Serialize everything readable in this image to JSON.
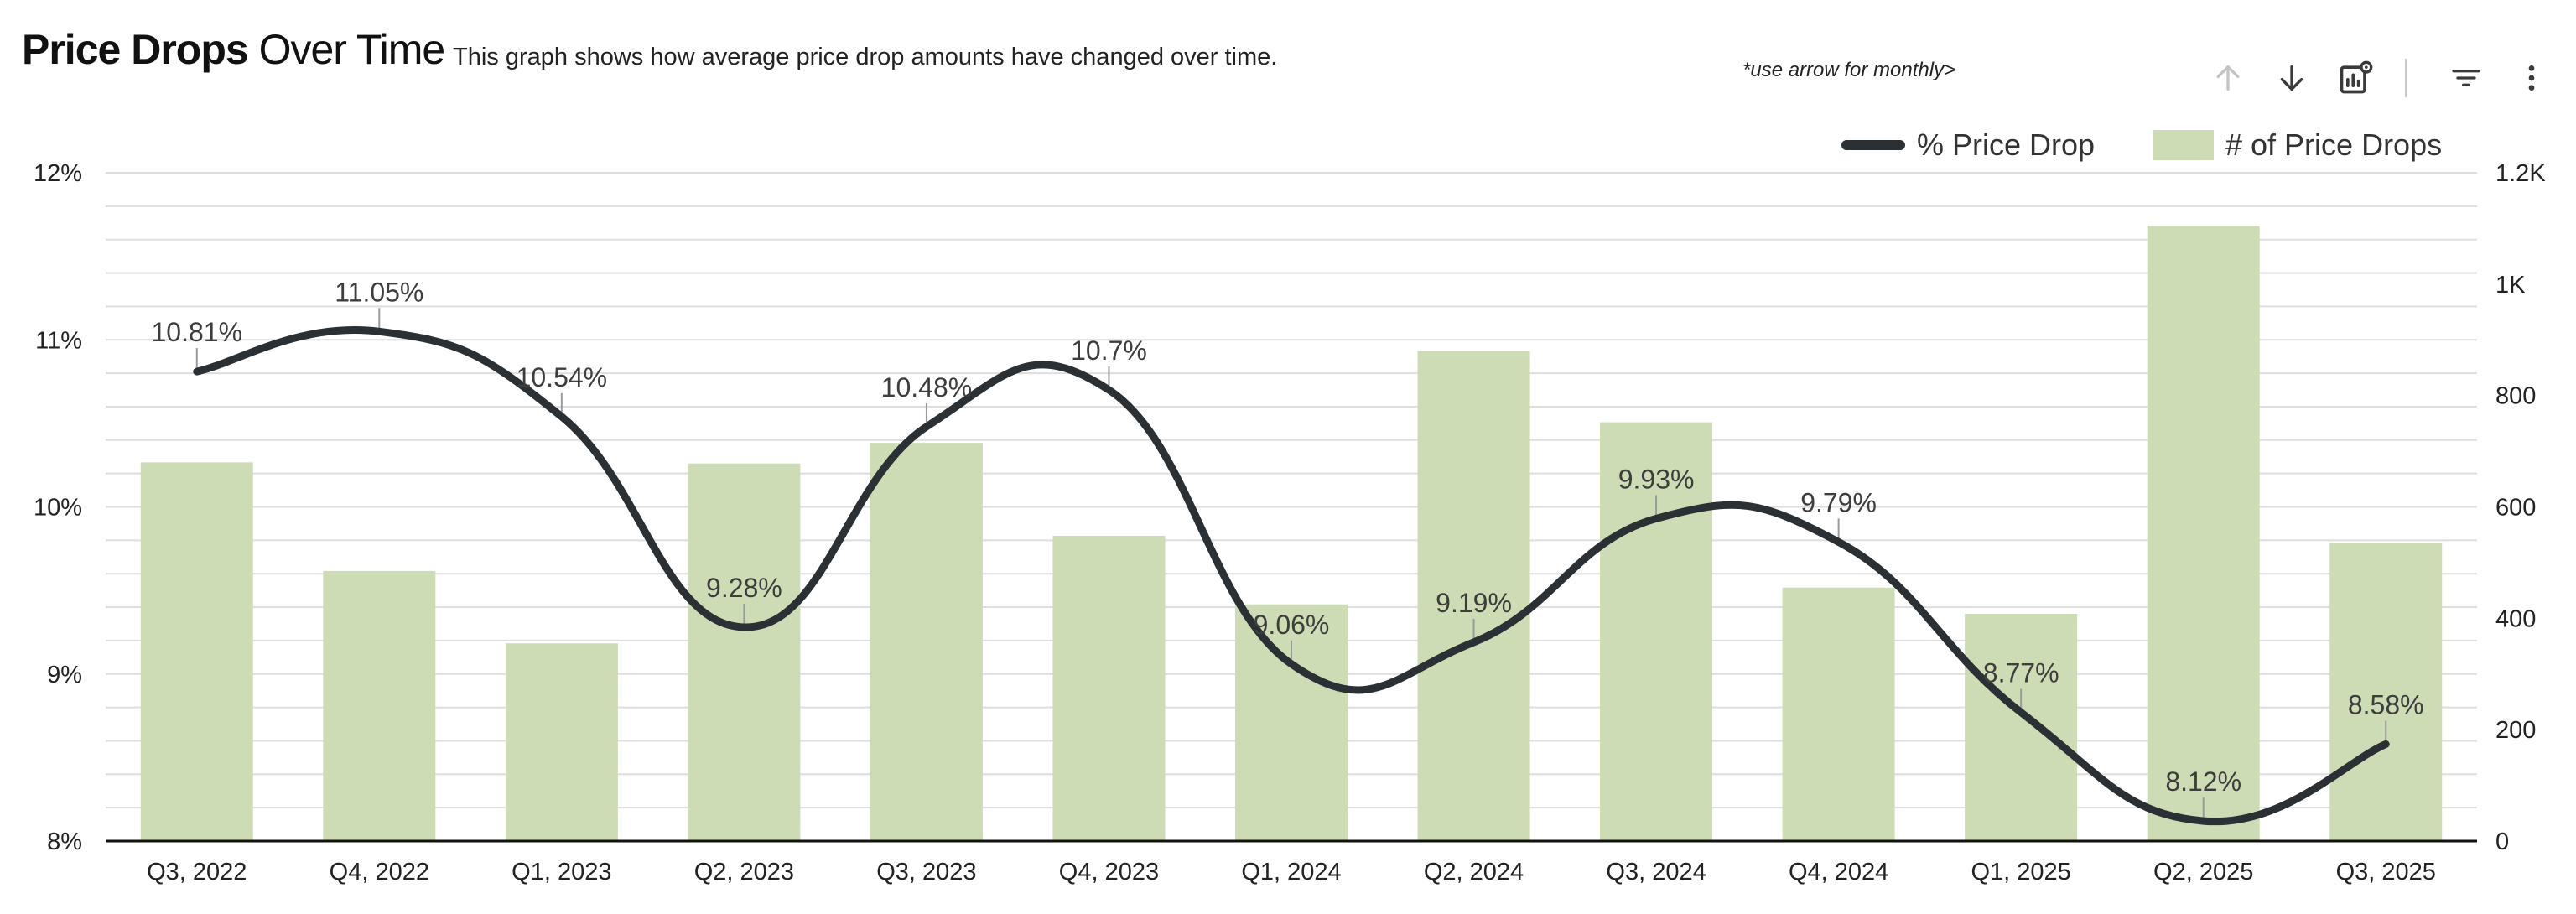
{
  "header": {
    "title_bold": "Price Drops",
    "title_rest": "Over Time",
    "subtitle": "This graph shows how average price drop amounts have changed over time.",
    "hint": "*use arrow for monthly>"
  },
  "toolbar": {
    "icons": [
      "arrow-up-icon",
      "arrow-down-icon",
      "chart-settings-icon",
      "filter-icon",
      "more-vert-icon"
    ]
  },
  "legend": {
    "line_label": "% Price Drop",
    "bar_label": "# of Price Drops"
  },
  "colors": {
    "line": "#2b3035",
    "bar": "#cddcb4",
    "grid": "#dedede",
    "axis": "#111111"
  },
  "chart_data": {
    "type": "bar+line",
    "title": "Price Drops Over Time",
    "categories": [
      "Q3, 2022",
      "Q4, 2022",
      "Q1, 2023",
      "Q2, 2023",
      "Q3, 2023",
      "Q4, 2023",
      "Q1, 2024",
      "Q2, 2024",
      "Q3, 2024",
      "Q4, 2024",
      "Q1, 2025",
      "Q2, 2025",
      "Q3, 2025"
    ],
    "series": [
      {
        "name": "% Price Drop",
        "type": "line",
        "axis": "left",
        "values": [
          10.81,
          11.05,
          10.54,
          9.28,
          10.48,
          10.7,
          9.06,
          9.19,
          9.93,
          9.79,
          8.77,
          8.12,
          8.58
        ],
        "labels": [
          "10.81%",
          "11.05%",
          "10.54%",
          "9.28%",
          "10.48%",
          "10.7%",
          "9.06%",
          "9.19%",
          "9.93%",
          "9.79%",
          "8.77%",
          "8.12%",
          "8.58%"
        ]
      },
      {
        "name": "# of Price Drops",
        "type": "bar",
        "axis": "right",
        "values": [
          680,
          485,
          355,
          678,
          715,
          548,
          425,
          880,
          752,
          455,
          408,
          1105,
          535
        ]
      }
    ],
    "y_left": {
      "min": 8,
      "max": 12,
      "ticks": [
        8,
        9,
        10,
        11,
        12
      ],
      "tick_labels": [
        "8%",
        "9%",
        "10%",
        "11%",
        "12%"
      ]
    },
    "y_right": {
      "min": 0,
      "max": 1200,
      "ticks": [
        0,
        200,
        400,
        600,
        800,
        1000,
        1200
      ],
      "tick_labels": [
        "0",
        "200",
        "400",
        "600",
        "800",
        "1K",
        "1.2K"
      ]
    },
    "grid": true,
    "legend_position": "top-right"
  }
}
